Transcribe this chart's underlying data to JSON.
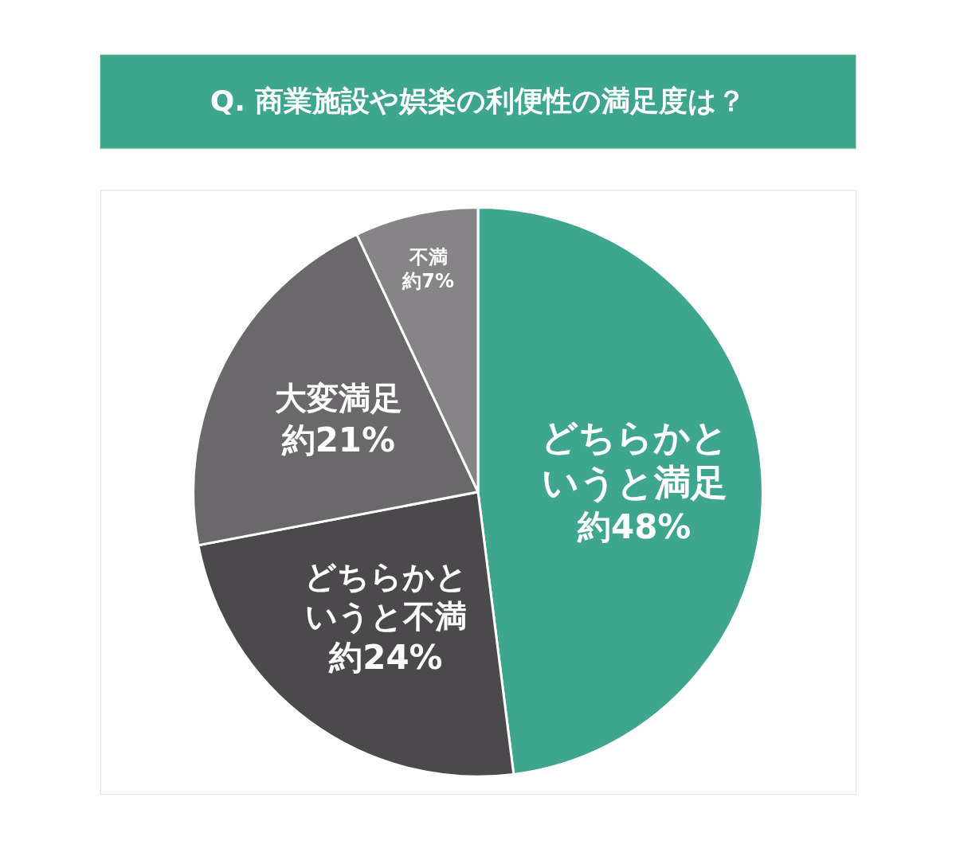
{
  "chart_data": {
    "type": "pie",
    "title": "Q. 商業施設や娯楽の利便性の満足度は？",
    "categories": [
      "どちらかというと満足",
      "どちらかというと不満",
      "大変満足",
      "不満"
    ],
    "values": [
      48,
      24,
      21,
      7
    ],
    "value_labels": [
      "約48%",
      "約24%",
      "約21%",
      "約7%"
    ],
    "colors": [
      "#3ea68f",
      "#4b494c",
      "#6a686b",
      "#868487"
    ],
    "legend": false
  }
}
